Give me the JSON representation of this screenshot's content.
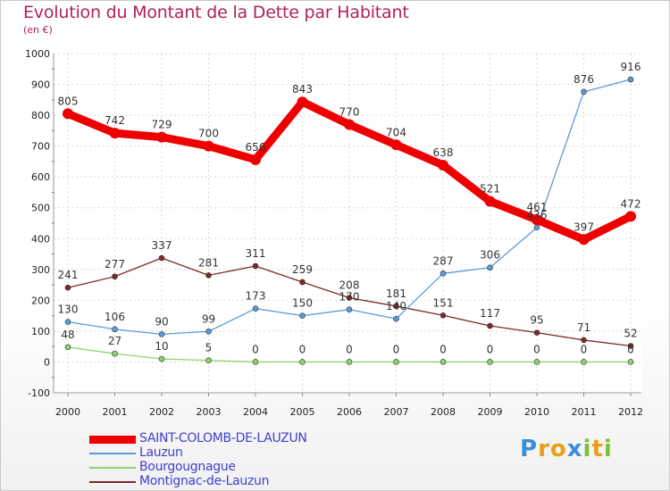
{
  "chart_data": {
    "type": "line",
    "title": "Evolution du Montant de la Dette par Habitant",
    "subtitle": "(en €)",
    "x": [
      "2000",
      "2001",
      "2002",
      "2003",
      "2004",
      "2005",
      "2006",
      "2007",
      "2008",
      "2009",
      "2010",
      "2011",
      "2012"
    ],
    "ylim": [
      -100,
      1000
    ],
    "yticks": [
      "-100",
      "0",
      "100",
      "200",
      "300",
      "400",
      "500",
      "600",
      "700",
      "800",
      "900",
      "1000"
    ],
    "grid": true,
    "legend_position": "bottom-left",
    "series": [
      {
        "name": "SAINT-COLOMB-DE-LAUZUN",
        "color": "#ee0000",
        "values": [
          805,
          742,
          729,
          700,
          656,
          843,
          770,
          704,
          638,
          521,
          461,
          397,
          472
        ],
        "labels": [
          "805",
          "742",
          "729",
          "700",
          "656",
          "843",
          "770",
          "704",
          "638",
          "521",
          "461",
          "397",
          "472"
        ]
      },
      {
        "name": "Lauzun",
        "color": "#5b9bd5",
        "values": [
          130,
          106,
          90,
          99,
          173,
          150,
          170,
          140,
          287,
          306,
          436,
          876,
          916
        ],
        "labels": [
          "130",
          "106",
          "90",
          "99",
          "173",
          "150",
          "170",
          "140",
          "287",
          "306",
          "436",
          "876",
          "916"
        ]
      },
      {
        "name": "Bourgougnague",
        "color": "#8ed36b",
        "values": [
          48,
          27,
          10,
          5,
          0,
          0,
          0,
          0,
          0,
          0,
          0,
          0,
          0
        ],
        "labels": [
          "48",
          "27",
          "10",
          "5",
          "0",
          "0",
          "0",
          "0",
          "0",
          "0",
          "0",
          "0",
          "0"
        ]
      },
      {
        "name": "Montignac-de-Lauzun",
        "color": "#7a2a2a",
        "values": [
          241,
          277,
          337,
          281,
          311,
          259,
          208,
          181,
          151,
          117,
          95,
          71,
          52
        ],
        "labels": [
          "241",
          "277",
          "337",
          "281",
          "311",
          "259",
          "208",
          "181",
          "151",
          "117",
          "95",
          "71",
          "52"
        ]
      }
    ]
  },
  "logo": {
    "letters": [
      "P",
      "r",
      "o",
      "x",
      "i",
      "t",
      "i"
    ],
    "colors": [
      "#3a8fd6",
      "#e9a018",
      "#e9a018",
      "#3a8fd6",
      "#7bbf3a",
      "#e9a018",
      "#7bbf3a"
    ]
  }
}
